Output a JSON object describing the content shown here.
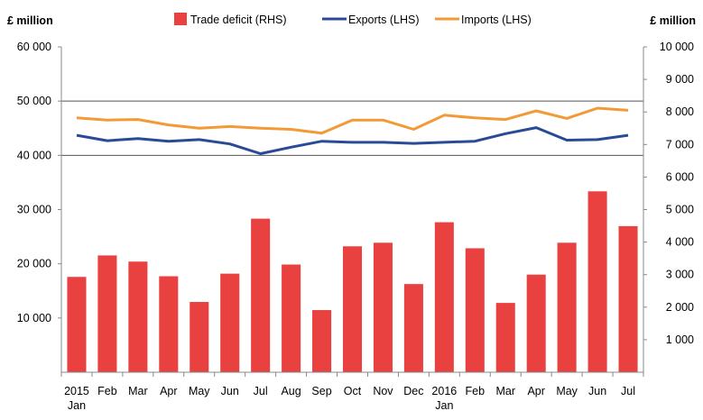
{
  "chart_data": {
    "type": "bar+line",
    "left_unit": "£ million",
    "right_unit": "£ million",
    "categories": [
      "2015 Jan",
      "Feb",
      "Mar",
      "Apr",
      "May",
      "Jun",
      "Jul",
      "Aug",
      "Sep",
      "Oct",
      "Nov",
      "Dec",
      "2016 Jan",
      "Feb",
      "Mar",
      "Apr",
      "May",
      "Jun",
      "Jul"
    ],
    "x_tick_labels": [
      [
        "2015",
        "Jan"
      ],
      [
        "Feb"
      ],
      [
        "Mar"
      ],
      [
        "Apr"
      ],
      [
        "May"
      ],
      [
        "Jun"
      ],
      [
        "Jul"
      ],
      [
        "Aug"
      ],
      [
        "Sep"
      ],
      [
        "Oct"
      ],
      [
        "Nov"
      ],
      [
        "Dec"
      ],
      [
        "2016",
        "Jan"
      ],
      [
        "Feb"
      ],
      [
        "Mar"
      ],
      [
        "Apr"
      ],
      [
        "May"
      ],
      [
        "Jun"
      ],
      [
        "Jul"
      ]
    ],
    "left_axis": {
      "min": 0,
      "max": 60000,
      "step": 10000,
      "tick_labels": [
        "10 000",
        "20 000",
        "30 000",
        "40 000",
        "50 000",
        "60 000"
      ]
    },
    "right_axis": {
      "min": 0,
      "max": 10000,
      "step": 1000,
      "tick_labels": [
        "1 000",
        "2 000",
        "3 000",
        "4 000",
        "5 000",
        "6 000",
        "7 000",
        "8 000",
        "9 000",
        "10 000"
      ]
    },
    "gridlines_left": [
      50000,
      40000
    ],
    "legend_position": "top",
    "series": [
      {
        "name": "Trade deficit (RHS)",
        "type": "bar",
        "axis": "right",
        "color": "#e8413f",
        "values": [
          2930,
          3590,
          3400,
          2950,
          2160,
          3030,
          4720,
          3310,
          1910,
          3870,
          3980,
          2710,
          4610,
          3810,
          2130,
          3000,
          3980,
          5560,
          4490
        ]
      },
      {
        "name": "Exports (LHS)",
        "type": "line",
        "axis": "left",
        "color": "#284a97",
        "values": [
          43700,
          42700,
          43100,
          42600,
          42900,
          42100,
          40300,
          41500,
          42600,
          42400,
          42400,
          42200,
          42400,
          42600,
          44000,
          45100,
          42800,
          42900,
          43700
        ]
      },
      {
        "name": "Imports (LHS)",
        "type": "line",
        "axis": "left",
        "color": "#f29a36",
        "values": [
          46900,
          46500,
          46600,
          45600,
          45000,
          45300,
          45000,
          44800,
          44100,
          46500,
          46500,
          44800,
          47400,
          46900,
          46600,
          48200,
          46800,
          48700,
          48300
        ]
      }
    ]
  }
}
